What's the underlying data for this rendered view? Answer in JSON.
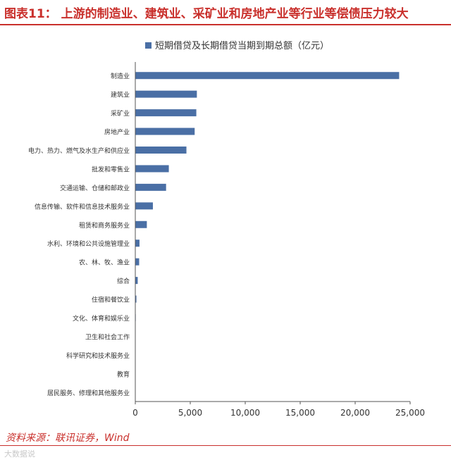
{
  "header": {
    "title": "图表11： 上游的制造业、建筑业、采矿业和房地产业等行业等偿债压力较大"
  },
  "source": {
    "text": "资料来源：联讯证券，Wind"
  },
  "watermark": {
    "text": "大数据说"
  },
  "colors": {
    "bar": "#4a6fa5",
    "title": "#c9302c",
    "axis": "#555555",
    "text": "#333333"
  },
  "chart_data": {
    "type": "bar",
    "orientation": "horizontal",
    "legend": "top",
    "grid": false,
    "xlim": [
      0,
      25000
    ],
    "xticks": [
      0,
      5000,
      10000,
      15000,
      20000,
      25000
    ],
    "xtick_labels": [
      "0",
      "5,000",
      "10,000",
      "15,000",
      "20,000",
      "25,000"
    ],
    "categories": [
      "制造业",
      "建筑业",
      "采矿业",
      "房地产业",
      "电力、热力、燃气及水生产和供应业",
      "批发和零售业",
      "交通运输、仓储和邮政业",
      "信息传输、软件和信息技术服务业",
      "租赁和商务服务业",
      "水利、环境和公共设施管理业",
      "农、林、牧、渔业",
      "综合",
      "住宿和餐饮业",
      "文化、体育和娱乐业",
      "卫生和社会工作",
      "科学研究和技术服务业",
      "教育",
      "居民服务、修理和其他服务业"
    ],
    "series": [
      {
        "name": "短期借贷及长期借贷当期到期总额（亿元）",
        "values": [
          24000,
          5600,
          5550,
          5400,
          4650,
          3050,
          2800,
          1600,
          1050,
          380,
          350,
          220,
          100,
          40,
          30,
          25,
          15,
          10
        ]
      }
    ]
  }
}
